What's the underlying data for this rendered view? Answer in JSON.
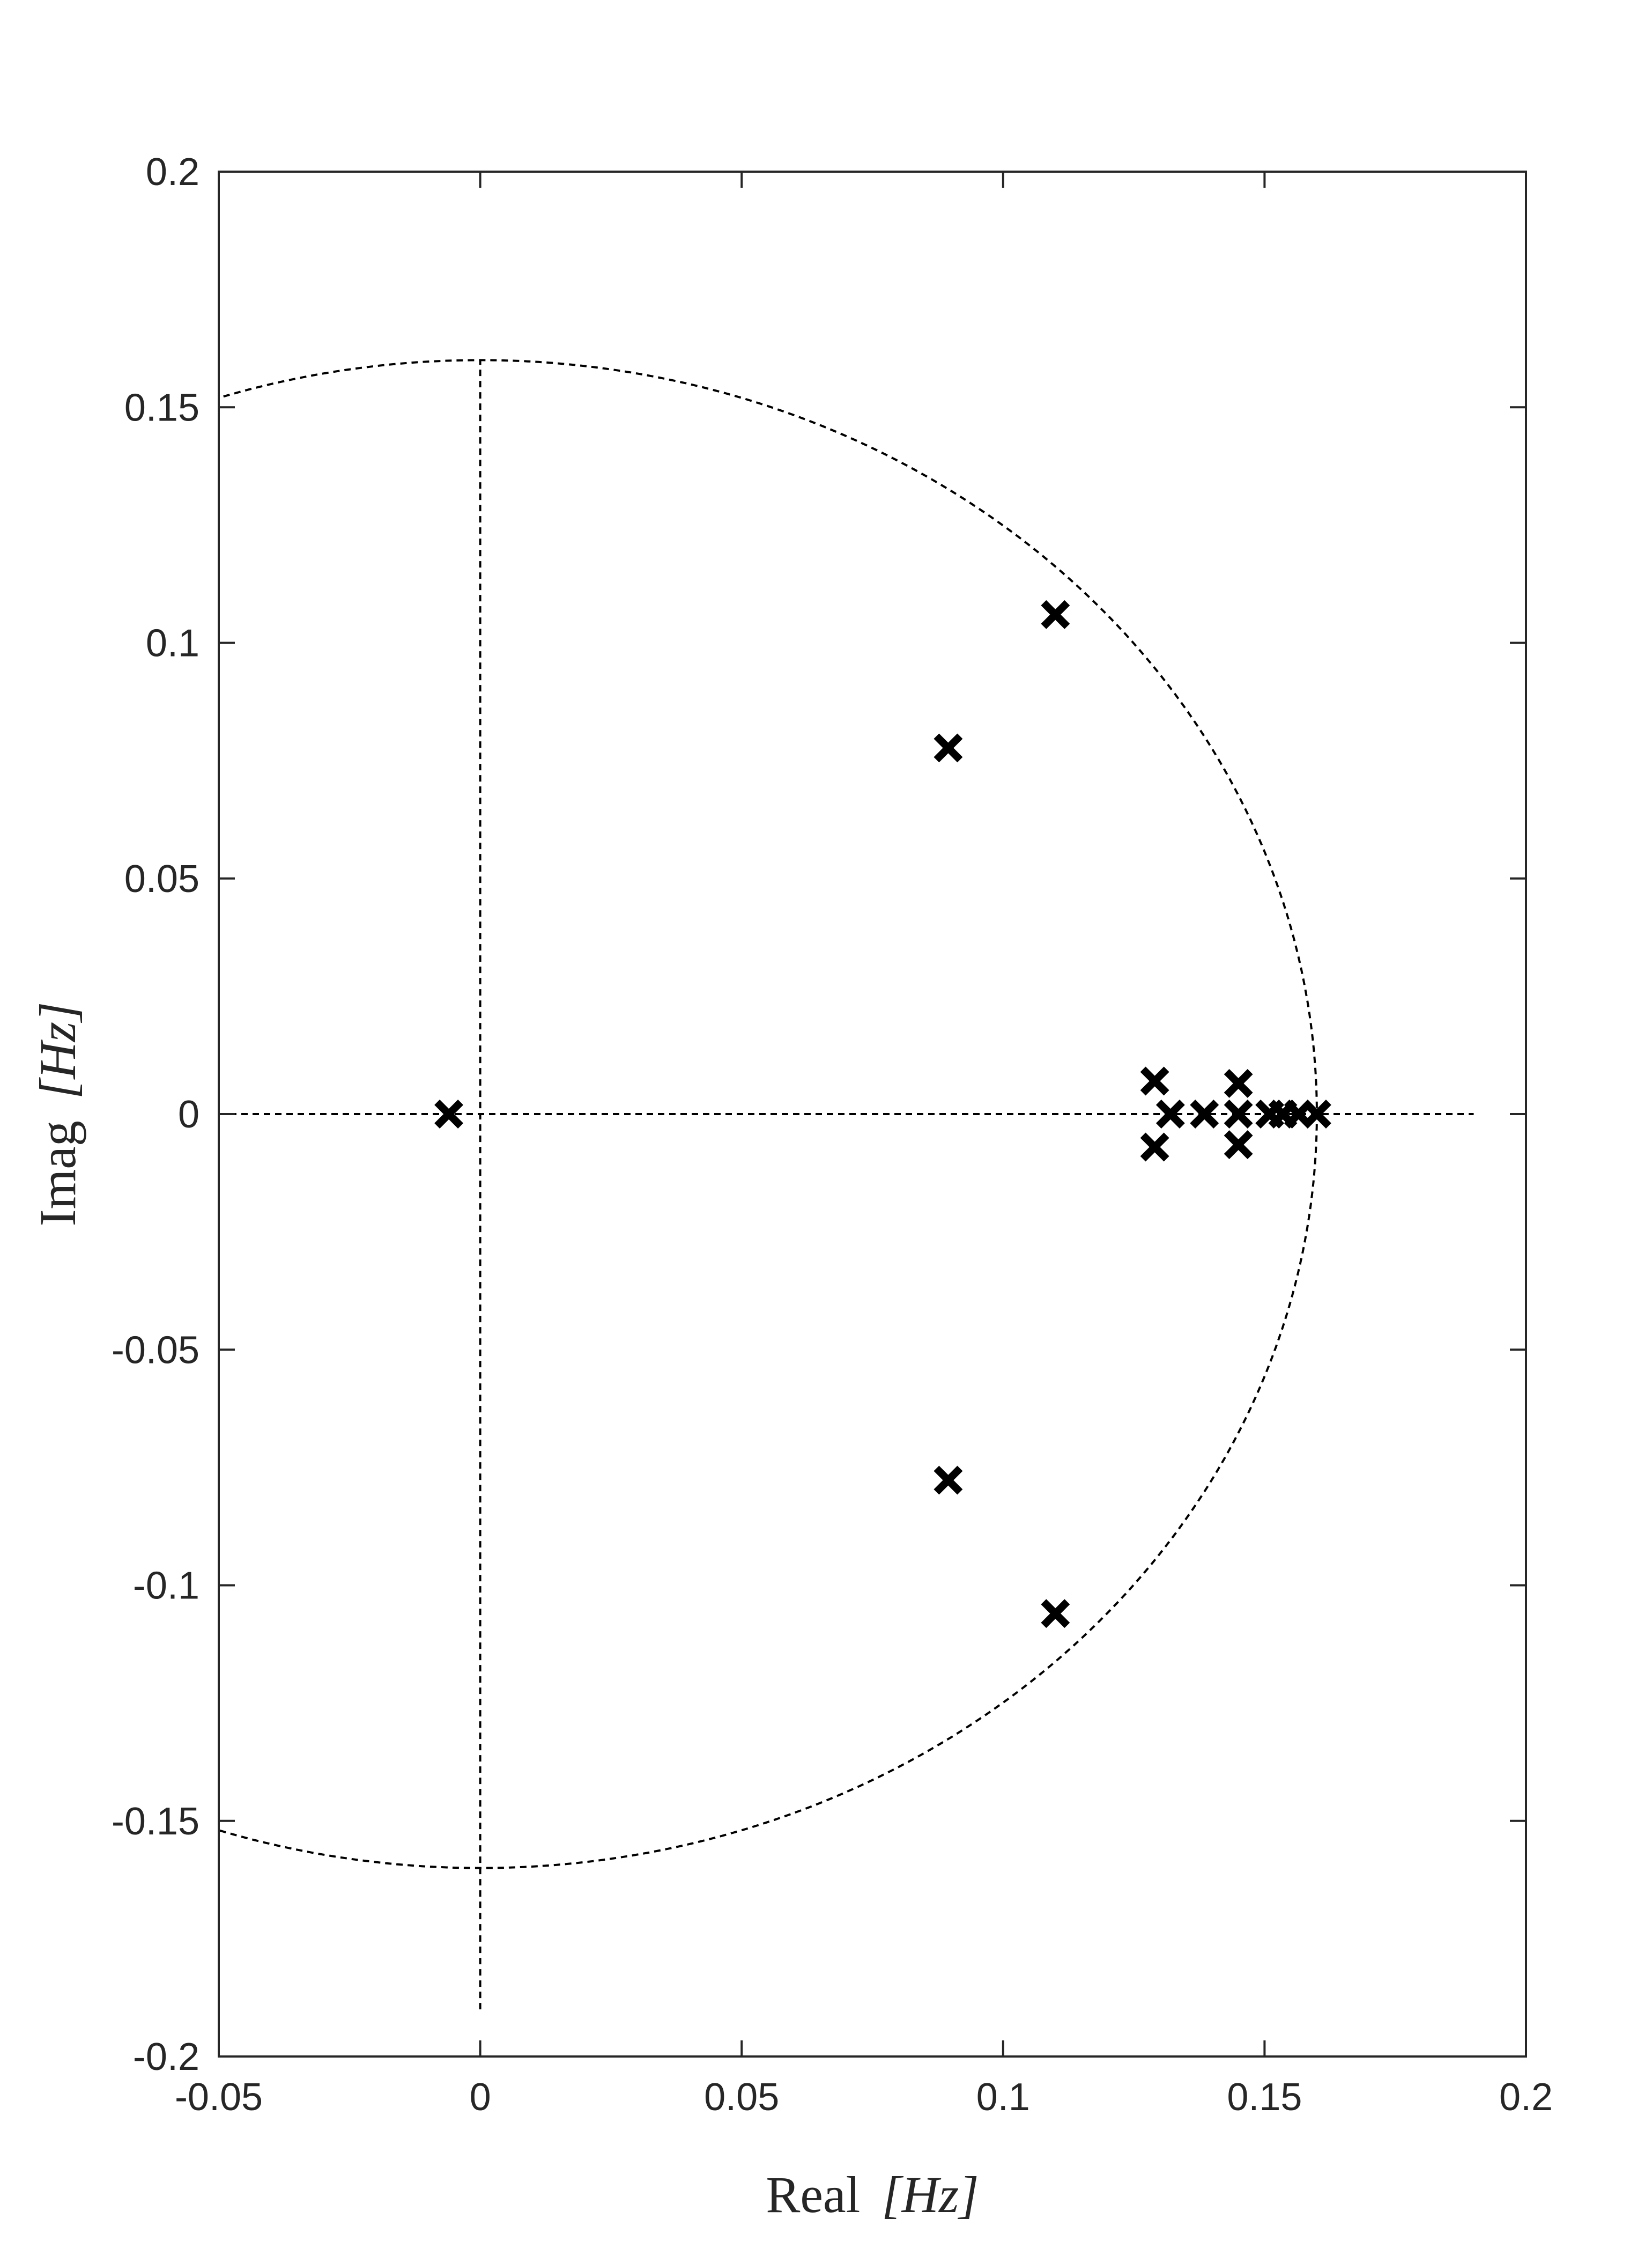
{
  "chart_data": {
    "type": "scatter",
    "title": "",
    "xlabel": "Real",
    "xlabel_unit": "[Hz]",
    "ylabel": "Imag",
    "ylabel_unit": "[Hz]",
    "xlim": [
      -0.05,
      0.2
    ],
    "ylim": [
      -0.2,
      0.2
    ],
    "xticks": [
      -0.05,
      0,
      0.05,
      0.1,
      0.15,
      0.2
    ],
    "xtick_labels": [
      "-0.05",
      "0",
      "0.05",
      "0.1",
      "0.15",
      "0.2"
    ],
    "yticks": [
      -0.2,
      -0.15,
      -0.1,
      -0.05,
      0,
      0.05,
      0.1,
      0.15,
      0.2
    ],
    "ytick_labels": [
      "-0.2",
      "-0.15",
      "-0.1",
      "-0.05",
      "0",
      "0.05",
      "0.1",
      "0.15",
      "0.2"
    ],
    "grid": false,
    "marker": "x",
    "marker_color": "#000000",
    "reference_circle": {
      "center": [
        0,
        0
      ],
      "radius": 0.16,
      "style": "dashed"
    },
    "reference_axes": {
      "horizontal": {
        "y": 0,
        "x_range": [
          -0.05,
          0.19
        ]
      },
      "vertical": {
        "x": 0,
        "y_range": [
          -0.19,
          0.16
        ]
      },
      "style": "dashed"
    },
    "points": [
      {
        "x": -0.006,
        "y": 0
      },
      {
        "x": 0.11,
        "y": 0.106
      },
      {
        "x": 0.11,
        "y": -0.106
      },
      {
        "x": 0.0895,
        "y": 0.0777
      },
      {
        "x": 0.0895,
        "y": -0.0777
      },
      {
        "x": 0.129,
        "y": 0.007
      },
      {
        "x": 0.129,
        "y": -0.007
      },
      {
        "x": 0.132,
        "y": 0
      },
      {
        "x": 0.1385,
        "y": 0
      },
      {
        "x": 0.145,
        "y": 0.0065
      },
      {
        "x": 0.145,
        "y": -0.0065
      },
      {
        "x": 0.145,
        "y": 0
      },
      {
        "x": 0.151,
        "y": 0
      },
      {
        "x": 0.1535,
        "y": 0
      },
      {
        "x": 0.1565,
        "y": 0
      },
      {
        "x": 0.16,
        "y": 0
      }
    ]
  }
}
